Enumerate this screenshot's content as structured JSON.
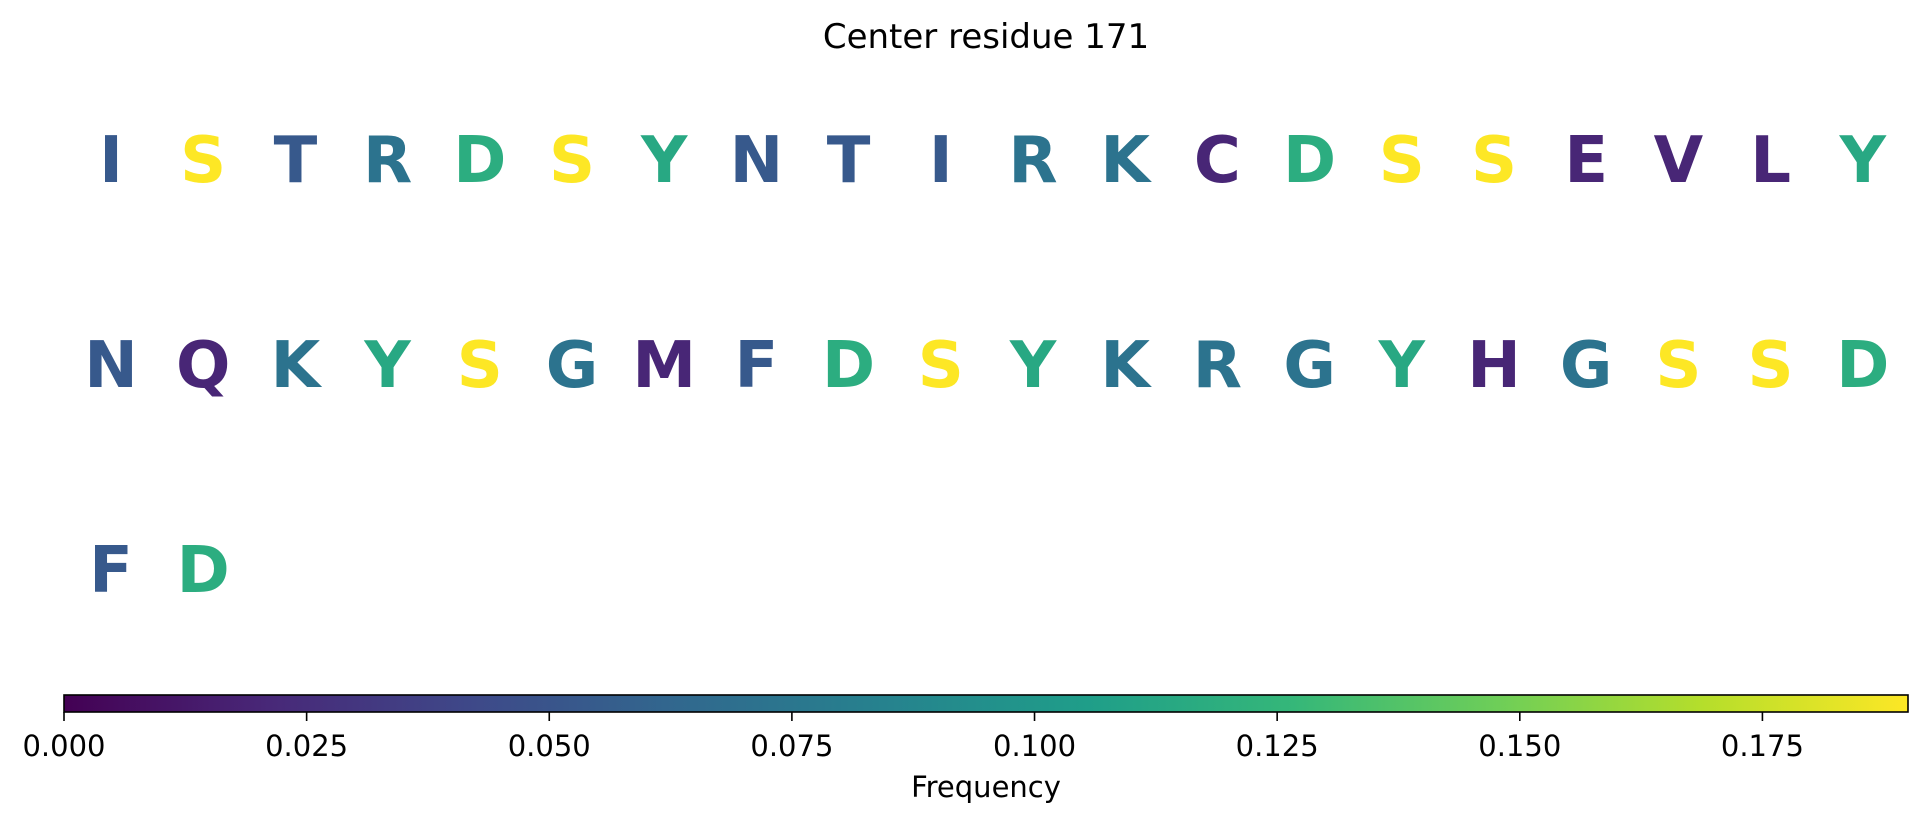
{
  "chart_data": {
    "type": "heatmap",
    "title": "Center residue 171",
    "cells": [
      {
        "residue": "I",
        "frequency": 0.053
      },
      {
        "residue": "S",
        "frequency": 0.19
      },
      {
        "residue": "T",
        "frequency": 0.053
      },
      {
        "residue": "R",
        "frequency": 0.072
      },
      {
        "residue": "D",
        "frequency": 0.118
      },
      {
        "residue": "S",
        "frequency": 0.19
      },
      {
        "residue": "Y",
        "frequency": 0.114
      },
      {
        "residue": "N",
        "frequency": 0.053
      },
      {
        "residue": "T",
        "frequency": 0.053
      },
      {
        "residue": "I",
        "frequency": 0.053
      },
      {
        "residue": "R",
        "frequency": 0.072
      },
      {
        "residue": "K",
        "frequency": 0.072
      },
      {
        "residue": "C",
        "frequency": 0.02
      },
      {
        "residue": "D",
        "frequency": 0.118
      },
      {
        "residue": "S",
        "frequency": 0.19
      },
      {
        "residue": "S",
        "frequency": 0.19
      },
      {
        "residue": "E",
        "frequency": 0.02
      },
      {
        "residue": "V",
        "frequency": 0.02
      },
      {
        "residue": "L",
        "frequency": 0.02
      },
      {
        "residue": "Y",
        "frequency": 0.114
      },
      {
        "residue": "N",
        "frequency": 0.053
      },
      {
        "residue": "Q",
        "frequency": 0.02
      },
      {
        "residue": "K",
        "frequency": 0.072
      },
      {
        "residue": "Y",
        "frequency": 0.114
      },
      {
        "residue": "S",
        "frequency": 0.19
      },
      {
        "residue": "G",
        "frequency": 0.072
      },
      {
        "residue": "M",
        "frequency": 0.02
      },
      {
        "residue": "F",
        "frequency": 0.053
      },
      {
        "residue": "D",
        "frequency": 0.118
      },
      {
        "residue": "S",
        "frequency": 0.19
      },
      {
        "residue": "Y",
        "frequency": 0.114
      },
      {
        "residue": "K",
        "frequency": 0.072
      },
      {
        "residue": "R",
        "frequency": 0.072
      },
      {
        "residue": "G",
        "frequency": 0.072
      },
      {
        "residue": "Y",
        "frequency": 0.114
      },
      {
        "residue": "H",
        "frequency": 0.02
      },
      {
        "residue": "G",
        "frequency": 0.072
      },
      {
        "residue": "S",
        "frequency": 0.19
      },
      {
        "residue": "S",
        "frequency": 0.19
      },
      {
        "residue": "D",
        "frequency": 0.118
      },
      {
        "residue": "F",
        "frequency": 0.053
      },
      {
        "residue": "D",
        "frequency": 0.118
      }
    ],
    "colorbar": {
      "label": "Frequency",
      "range": [
        0,
        0.19
      ],
      "ticks": [
        0.0,
        0.025,
        0.05,
        0.075,
        0.1,
        0.125,
        0.15,
        0.175
      ],
      "tick_labels": [
        "0.000",
        "0.025",
        "0.050",
        "0.075",
        "0.100",
        "0.125",
        "0.150",
        "0.175"
      ],
      "colormap": "viridis",
      "colormap_stops": [
        "#440154",
        "#482878",
        "#3e4989",
        "#31688e",
        "#26828e",
        "#1f9e89",
        "#35b779",
        "#6ece58",
        "#b5de2b",
        "#fde725"
      ]
    }
  }
}
